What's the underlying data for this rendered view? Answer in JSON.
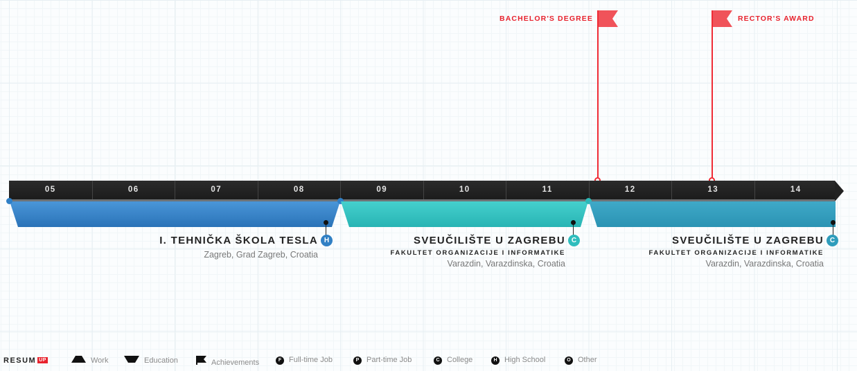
{
  "timeline": {
    "years": [
      "05",
      "06",
      "07",
      "08",
      "09",
      "10",
      "11",
      "12",
      "13",
      "14"
    ]
  },
  "achievements": [
    {
      "label": "BACHELOR'S DEGREE"
    },
    {
      "label": "RECTOR'S AWARD"
    }
  ],
  "education": [
    {
      "name": "I. TEHNIČKA ŠKOLA TESLA",
      "badge": "H",
      "subtitle": "",
      "location": "Zagreb, Grad Zagreb, Croatia",
      "color": "#3180c4"
    },
    {
      "name": "SVEUČILIŠTE U ZAGREBU",
      "badge": "C",
      "subtitle": "FAKULTET ORGANIZACIJE I INFORMATIKE",
      "location": "Varazdin, Varazdinska, Croatia",
      "color": "#2fbdbd"
    },
    {
      "name": "SVEUČILIŠTE U ZAGREBU",
      "badge": "C",
      "subtitle": "FAKULTET ORGANIZACIJE I INFORMATIKE",
      "location": "Varazdin, Varazdinska, Croatia",
      "color": "#2f9dbc"
    }
  ],
  "footer": {
    "logo": "RESUM",
    "logo_badge": "UP",
    "legend": {
      "work": "Work",
      "education": "Education",
      "achievements": "Achievements",
      "full_time": {
        "letter": "F",
        "label": "Full-time Job"
      },
      "part_time": {
        "letter": "P",
        "label": "Part-time Job"
      },
      "college": {
        "letter": "C",
        "label": "College"
      },
      "high_school": {
        "letter": "H",
        "label": "High School"
      },
      "other": {
        "letter": "O",
        "label": "Other"
      }
    }
  },
  "colors": {
    "accent_red": "#e8222d",
    "timeline_dark": "#222222",
    "high_school_blue": "#3180c4",
    "college_teal": "#2fbdbd",
    "college_blue": "#2f9dbc"
  }
}
